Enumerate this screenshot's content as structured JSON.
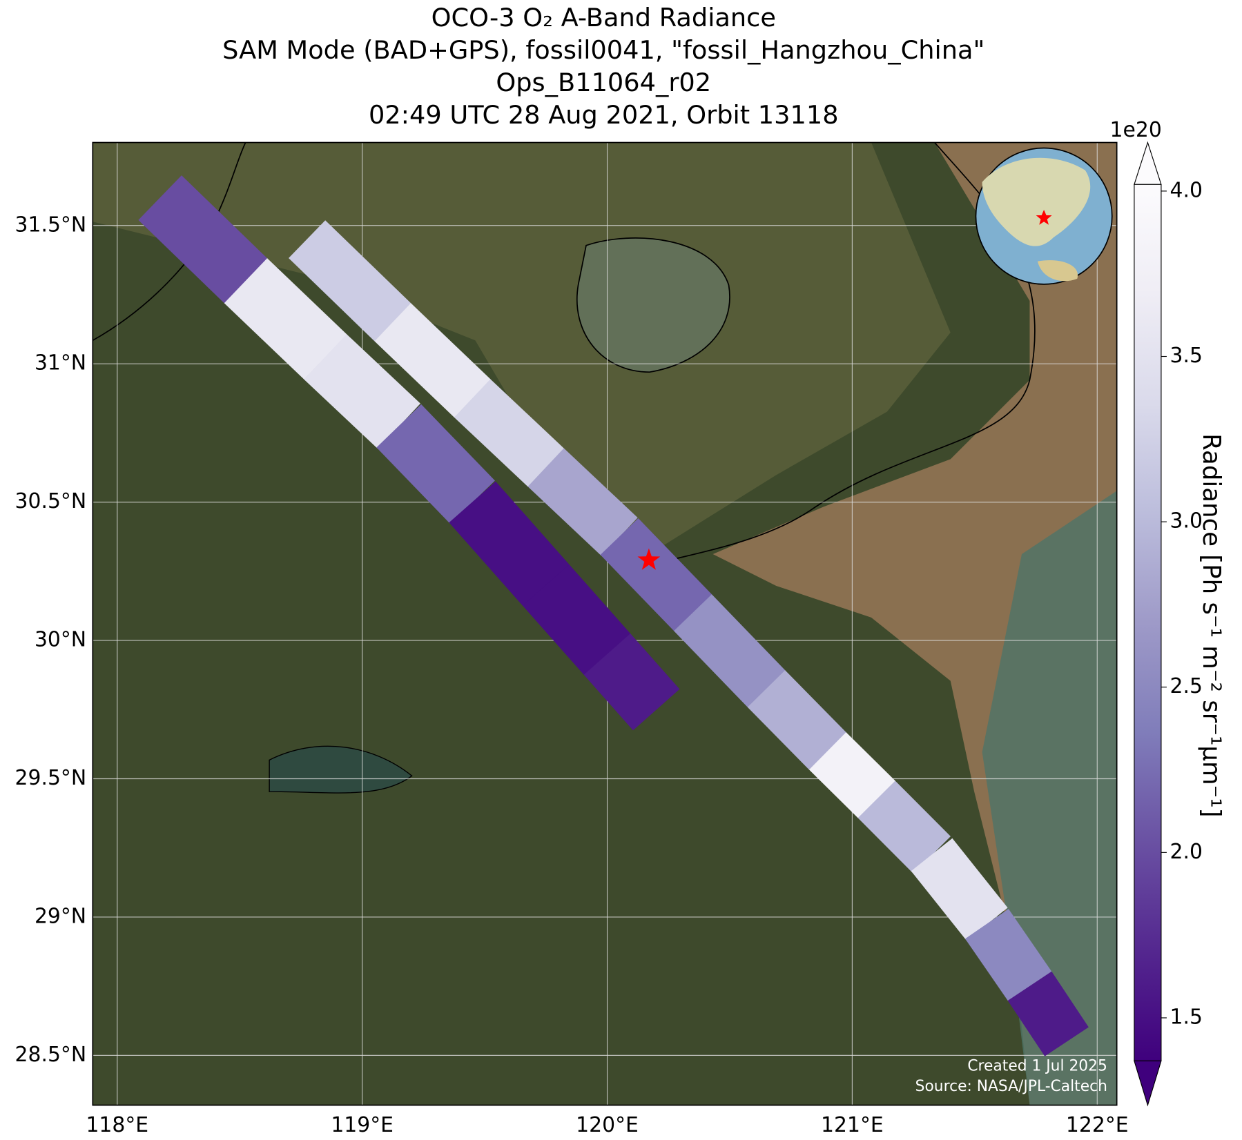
{
  "chart_data": {
    "type": "swath-map",
    "title": [
      "OCO-3 O₂ A-Band Radiance",
      "SAM Mode (BAD+GPS), fossil0041, \"fossil_Hangzhou_China\"",
      "Ops_B11064_r02",
      "02:49 UTC 28 Aug 2021, Orbit 13118"
    ],
    "xlim": [
      117.9,
      122.08
    ],
    "ylim": [
      28.32,
      31.8
    ],
    "xticks": [
      {
        "value": 118,
        "label": "118°E"
      },
      {
        "value": 119,
        "label": "119°E"
      },
      {
        "value": 120,
        "label": "120°E"
      },
      {
        "value": 121,
        "label": "121°E"
      },
      {
        "value": 122,
        "label": "122°E"
      }
    ],
    "yticks": [
      {
        "value": 28.5,
        "label": "28.5°N"
      },
      {
        "value": 29,
        "label": "29°N"
      },
      {
        "value": 29.5,
        "label": "29.5°N"
      },
      {
        "value": 30,
        "label": "30°N"
      },
      {
        "value": 30.5,
        "label": "30.5°N"
      },
      {
        "value": 31,
        "label": "31°N"
      },
      {
        "value": 31.5,
        "label": "31.5°N"
      }
    ],
    "grid": true,
    "swaths": [
      {
        "lon": [
          118.35,
          118.7,
          119.0,
          119.3,
          119.6,
          119.9,
          120.1
        ],
        "lat": [
          31.45,
          31.15,
          30.9,
          30.65,
          30.35,
          30.05,
          29.85
        ],
        "values": [
          2.0,
          3.6,
          3.5,
          2.2,
          1.5,
          1.5,
          1.6
        ]
      },
      {
        "lon": [
          118.95,
          119.3,
          119.6,
          119.9,
          120.2,
          120.5,
          120.8,
          121.0,
          121.2,
          121.45,
          121.65,
          121.8
        ],
        "lat": [
          31.3,
          31.0,
          30.75,
          30.5,
          30.25,
          29.95,
          29.7,
          29.5,
          29.35,
          29.1,
          28.85,
          28.65
        ],
        "values": [
          3.2,
          3.6,
          3.3,
          2.8,
          2.2,
          2.6,
          2.9,
          3.8,
          3.0,
          3.5,
          2.5,
          1.6
        ]
      }
    ],
    "target": {
      "lon": 120.17,
      "lat": 30.29,
      "color": "#ff0000"
    },
    "colorbar": {
      "label": "Radiance [Ph s⁻¹ m⁻² sr⁻¹μm⁻¹]",
      "offset_label": "1e20",
      "clim": [
        1.37,
        4.02
      ],
      "ticks": [
        {
          "value": 1.5,
          "label": "1.5"
        },
        {
          "value": 2.0,
          "label": "2.0"
        },
        {
          "value": 2.5,
          "label": "2.5"
        },
        {
          "value": 3.0,
          "label": "3.0"
        },
        {
          "value": 3.5,
          "label": "3.5"
        },
        {
          "value": 4.0,
          "label": "4.0"
        }
      ],
      "colormap": [
        "#3f007d",
        "#54278f",
        "#6a51a3",
        "#807dba",
        "#9e9ac8",
        "#bcbddc",
        "#dadaeb",
        "#efedf5",
        "#fcfbfd"
      ]
    },
    "credits": [
      "Created 1 Jul 2025",
      "Source: NASA/JPL-Caltech"
    ]
  }
}
